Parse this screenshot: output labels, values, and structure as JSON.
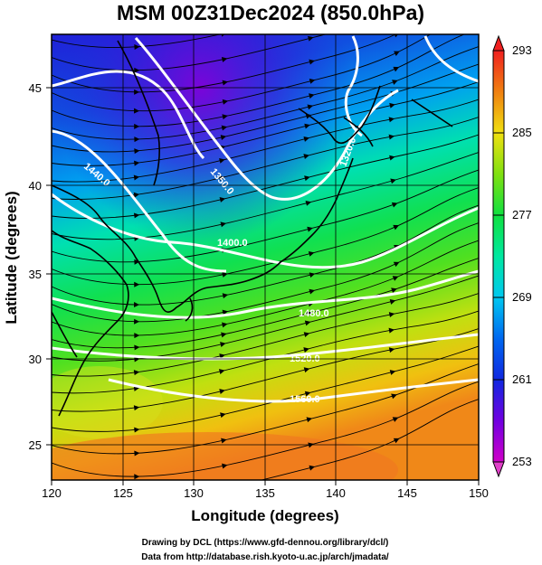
{
  "title": "MSM 00Z31Dec2024 (850.0hPa)",
  "x_axis": {
    "label": "Longitude (degrees)",
    "ticks": [
      "120",
      "125",
      "130",
      "135",
      "140",
      "145",
      "150"
    ]
  },
  "y_axis": {
    "label": "Latitude  (degrees)",
    "ticks": [
      "25",
      "30",
      "35",
      "40",
      "45"
    ]
  },
  "colorbar": {
    "ticks": [
      "293",
      "285",
      "277",
      "269",
      "261",
      "253"
    ],
    "colors": [
      "#d000c8",
      "#6a00e0",
      "#1030e0",
      "#00a8f0",
      "#00e8c0",
      "#10e050",
      "#40e020",
      "#a8e010",
      "#f0d010",
      "#f08010",
      "#f02020"
    ]
  },
  "contour_labels": [
    "1440.0",
    "1350.0",
    "1320.0",
    "1400.0",
    "1480.0",
    "1520.0",
    "1560.0"
  ],
  "credits": {
    "line1": "Drawing by DCL (https://www.gfd-dennou.org/library/dcl/)",
    "line2": "Data from http://database.rish.kyoto-u.ac.jp/arch/jmadata/"
  }
}
